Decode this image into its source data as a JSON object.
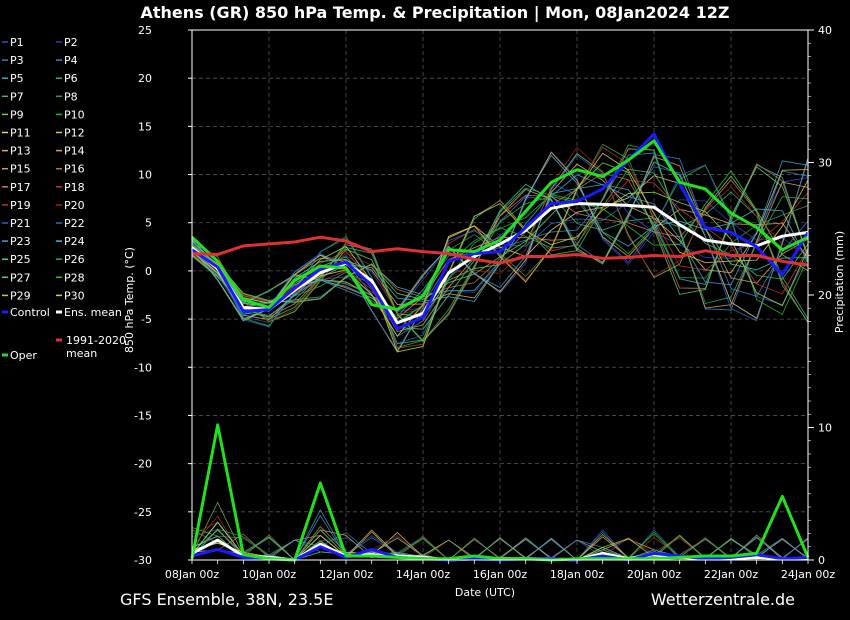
{
  "footer": {
    "source": "GFS Ensemble, 38N, 23.5E",
    "site": "Wetterzentrale.de"
  },
  "chart_data": {
    "type": "line",
    "title": "Athens  (GR)  850 hPa Temp. & Precipitation | Mon, 08Jan2024 12Z",
    "xlabel": "Date (UTC)",
    "ylabel": "850 hPa Temp. (°C)",
    "y2label": "Precipitation (mm)",
    "ylim": [
      -30,
      25
    ],
    "y2lim": [
      0,
      40
    ],
    "x_ticks": [
      "08Jan 00z",
      "10Jan 00z",
      "12Jan 00z",
      "14Jan 00z",
      "16Jan 00z",
      "18Jan 00z",
      "20Jan 00z",
      "22Jan 00z",
      "24Jan 00z"
    ],
    "y_ticks": [
      25,
      20,
      15,
      10,
      5,
      0,
      -5,
      -10,
      -15,
      -20,
      -25,
      -30
    ],
    "y2_ticks": [
      40,
      30,
      20,
      10,
      0
    ],
    "grid": true,
    "x_step_hours": 12,
    "legend_placement": "left",
    "legend": [
      {
        "name": "P1",
        "color": "#2f4fd6"
      },
      {
        "name": "P2",
        "color": "#2a3fb0"
      },
      {
        "name": "P3",
        "color": "#3a7fd0"
      },
      {
        "name": "P4",
        "color": "#2a90c0"
      },
      {
        "name": "P5",
        "color": "#30b0d0"
      },
      {
        "name": "P6",
        "color": "#2fb08a"
      },
      {
        "name": "P7",
        "color": "#38c060"
      },
      {
        "name": "P8",
        "color": "#2fa040"
      },
      {
        "name": "P9",
        "color": "#7ad040"
      },
      {
        "name": "P10",
        "color": "#20c020"
      },
      {
        "name": "P11",
        "color": "#f0d070"
      },
      {
        "name": "P12",
        "color": "#e8c060"
      },
      {
        "name": "P13",
        "color": "#e8a860"
      },
      {
        "name": "P14",
        "color": "#d8a040"
      },
      {
        "name": "P15",
        "color": "#e89060"
      },
      {
        "name": "P16",
        "color": "#c07030"
      },
      {
        "name": "P17",
        "color": "#e07060"
      },
      {
        "name": "P18",
        "color": "#d03030"
      },
      {
        "name": "P19",
        "color": "#c03020"
      },
      {
        "name": "P20",
        "color": "#a02010"
      },
      {
        "name": "P21",
        "color": "#3060d0"
      },
      {
        "name": "P22",
        "color": "#2070c8"
      },
      {
        "name": "P23",
        "color": "#40a0e0"
      },
      {
        "name": "P24",
        "color": "#40b8d0"
      },
      {
        "name": "P25",
        "color": "#40d0a0"
      },
      {
        "name": "P26",
        "color": "#20b060"
      },
      {
        "name": "P27",
        "color": "#60d060"
      },
      {
        "name": "P28",
        "color": "#30c030"
      },
      {
        "name": "P29",
        "color": "#a0e040"
      },
      {
        "name": "P30",
        "color": "#e0d040"
      },
      {
        "name": "Control",
        "color": "#1a1aff"
      },
      {
        "name": "Ens. mean",
        "color": "#ffffff"
      },
      {
        "name": "1991-2020 mean",
        "color": "#e03030"
      },
      {
        "name": "Oper",
        "color": "#20e020"
      }
    ],
    "series": [
      {
        "name": "Ens. mean",
        "color": "#ffffff",
        "values": [
          2.4,
          0.2,
          -3.8,
          -4.0,
          -2.0,
          -0.2,
          0.8,
          -1.0,
          -5.4,
          -4.4,
          -0.2,
          1.5,
          2.8,
          4.2,
          6.5,
          7.0,
          6.9,
          6.8,
          6.6,
          4.8,
          3.2,
          2.8,
          2.6,
          3.6,
          4.0
        ],
        "precip": [
          0.5,
          1.5,
          0.3,
          0.2,
          0,
          1.2,
          0.3,
          0.4,
          0.3,
          0.2,
          0,
          0.1,
          0.1,
          0.1,
          0.1,
          0,
          0.5,
          0.1,
          0.4,
          0.2,
          0.1,
          0.1,
          0.2,
          0.1,
          0.1
        ]
      },
      {
        "name": "Control",
        "color": "#1a1aff",
        "values": [
          2.2,
          0.4,
          -4.2,
          -4.0,
          -1.8,
          0.2,
          0.9,
          -1.5,
          -6.0,
          -4.8,
          1.0,
          1.8,
          2.0,
          4.5,
          7.0,
          7.2,
          8.5,
          11.5,
          14.2,
          9.0,
          4.5,
          4.0,
          2.5,
          -0.4,
          4.0
        ],
        "precip": [
          0.3,
          0.8,
          0.2,
          0.1,
          0,
          1.0,
          0.2,
          0.8,
          0.2,
          0.1,
          0,
          0.1,
          0,
          0.1,
          0.1,
          0,
          0.3,
          0,
          0.5,
          0.3,
          0.1,
          0.2,
          0.4,
          0.1,
          0.2
        ]
      },
      {
        "name": "Oper",
        "color": "#20e020",
        "values": [
          3.5,
          1.0,
          -3.0,
          -3.8,
          -1.0,
          0.5,
          0.3,
          -3.5,
          -4.0,
          -2.6,
          2.2,
          2.0,
          3.2,
          6.2,
          9.2,
          10.5,
          9.8,
          11.5,
          13.5,
          9.2,
          8.5,
          6.0,
          4.5,
          2.2,
          3.5
        ],
        "precip": [
          0.1,
          10.2,
          0.4,
          0.1,
          0,
          5.8,
          0.3,
          0.3,
          0.2,
          0.1,
          0.1,
          0.3,
          0.1,
          0.1,
          0,
          0.1,
          0.1,
          0.1,
          0.1,
          0.2,
          0.3,
          0.3,
          0.5,
          4.8,
          0.2
        ]
      },
      {
        "name": "1991-2020 mean",
        "color": "#e03030",
        "values": [
          1.8,
          1.7,
          2.6,
          2.8,
          3.0,
          3.5,
          3.1,
          2.0,
          2.3,
          2.0,
          1.8,
          1.2,
          0.8,
          1.5,
          1.5,
          1.7,
          1.3,
          1.4,
          1.6,
          1.5,
          2.1,
          1.6,
          1.6,
          1.0,
          0.6
        ]
      }
    ]
  }
}
